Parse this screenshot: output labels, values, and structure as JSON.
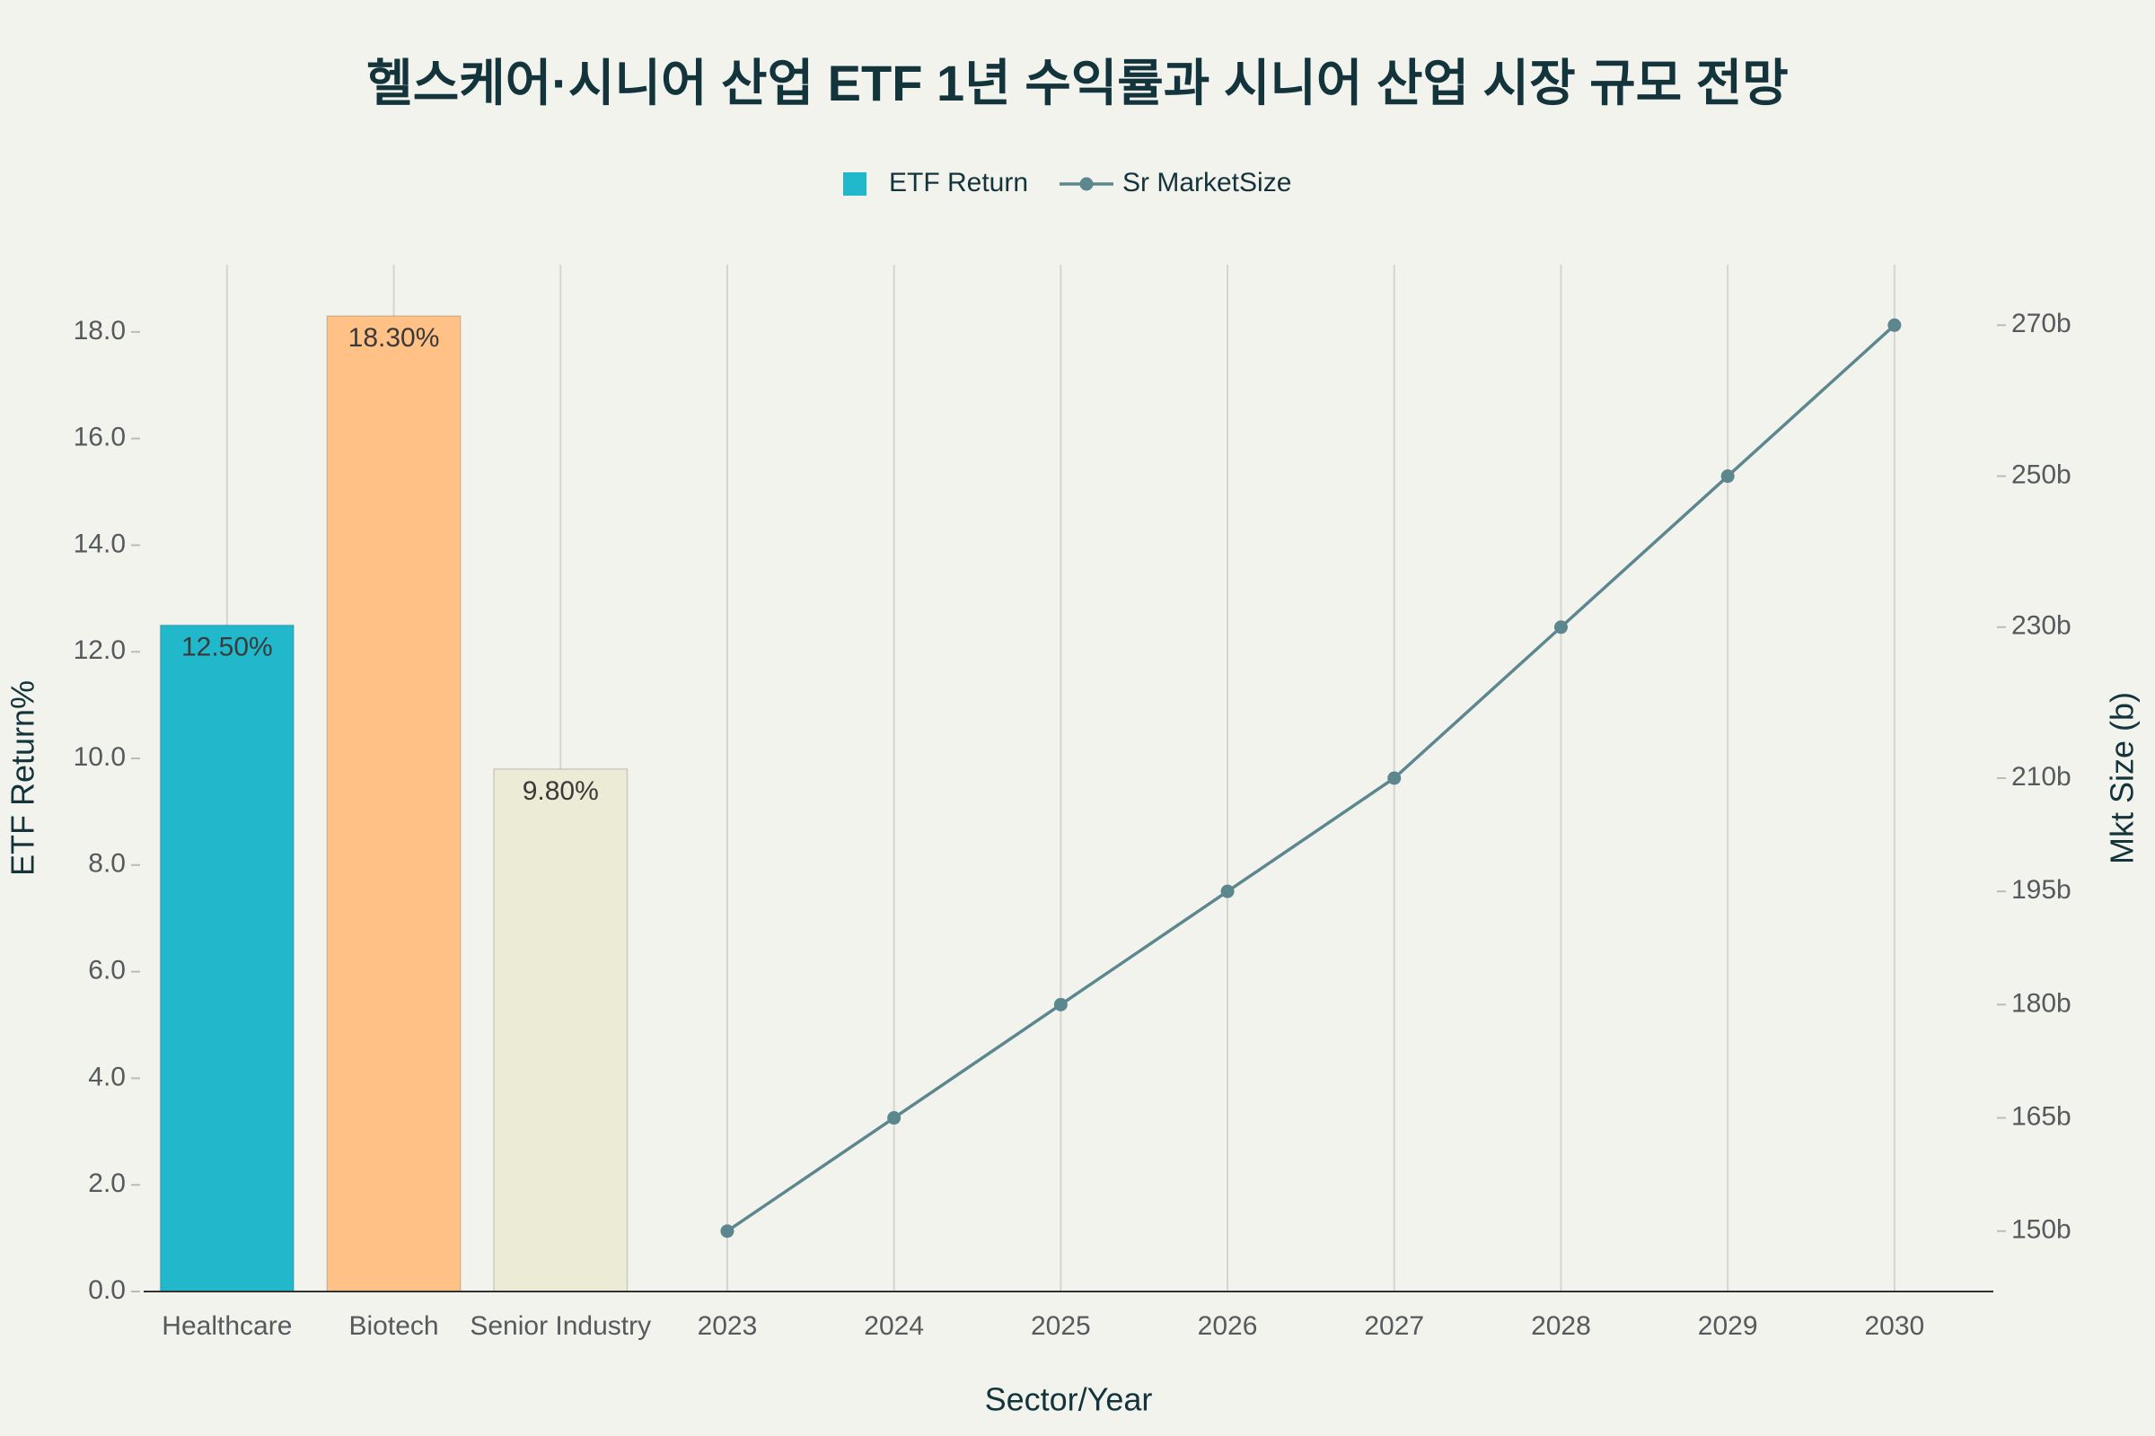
{
  "chart_data": {
    "type": "bar-line",
    "title": "헬스케어·시니어 산업 ETF 1년 수익률과 시니어 산업 시장 규모 전망",
    "x_label": "Sector/Year",
    "y_label": "ETF Return%",
    "y2_label": "Mkt Size (b)",
    "categories": [
      "Healthcare",
      "Biotech",
      "Senior Industry",
      "2023",
      "2024",
      "2025",
      "2026",
      "2027",
      "2028",
      "2029",
      "2030"
    ],
    "series": [
      {
        "name": "ETF Return",
        "type": "bar",
        "color": "#21b8cc",
        "colors": [
          "#21b8cc",
          "#ffc185",
          "#ecebd5",
          null,
          null,
          null,
          null,
          null,
          null,
          null,
          null
        ],
        "values": [
          12.5,
          18.3,
          9.8,
          null,
          null,
          null,
          null,
          null,
          null,
          null,
          null
        ],
        "value_labels": [
          "12.50%",
          "18.30%",
          "9.80%",
          null,
          null,
          null,
          null,
          null,
          null,
          null,
          null
        ]
      },
      {
        "name": "Sr MarketSize",
        "type": "line",
        "axis": "y2",
        "color": "#5d878f",
        "values": [
          null,
          null,
          null,
          150,
          165,
          180,
          195,
          210,
          230,
          250,
          270
        ]
      }
    ],
    "ylim": [
      0,
      19.26
    ],
    "yticks": [
      {
        "value": 0,
        "label": "0.0"
      },
      {
        "value": 2,
        "label": "2.0"
      },
      {
        "value": 4,
        "label": "4.0"
      },
      {
        "value": 6,
        "label": "6.0"
      },
      {
        "value": 8,
        "label": "8.0"
      },
      {
        "value": 10,
        "label": "10.0"
      },
      {
        "value": 12,
        "label": "12.0"
      },
      {
        "value": 14,
        "label": "14.0"
      },
      {
        "value": 16,
        "label": "16.0"
      },
      {
        "value": 18,
        "label": "18.0"
      }
    ],
    "y2lim": [
      142,
      278
    ],
    "y2ticks": [
      {
        "value": 150,
        "label": "150b"
      },
      {
        "value": 165,
        "label": "165b"
      },
      {
        "value": 180,
        "label": "180b"
      },
      {
        "value": 195,
        "label": "195b"
      },
      {
        "value": 210,
        "label": "210b"
      },
      {
        "value": 230,
        "label": "230b"
      },
      {
        "value": 250,
        "label": "250b"
      },
      {
        "value": 270,
        "label": "270b"
      }
    ],
    "grid": "x",
    "legend": "top"
  }
}
